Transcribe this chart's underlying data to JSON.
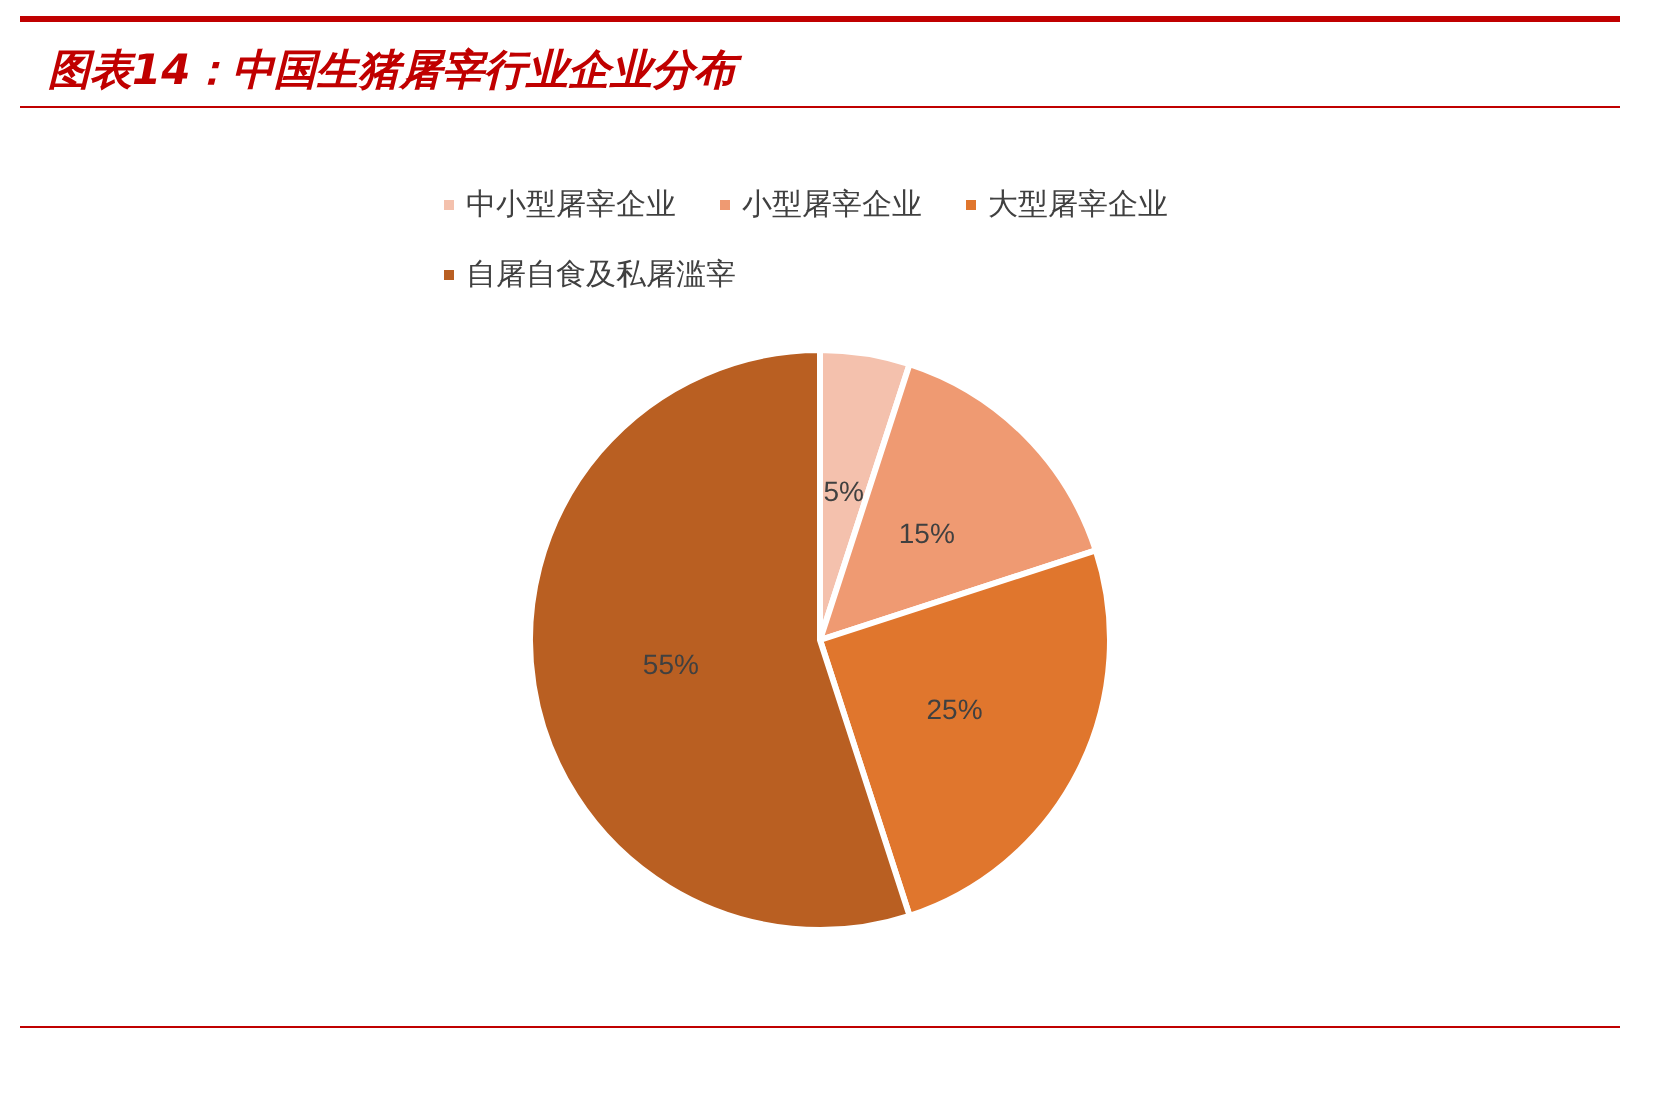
{
  "chart_data": {
    "type": "pie",
    "title": "图表14：中国生猪屠宰行业企业分布",
    "categories": [
      "中小型屠宰企业",
      "小型屠宰企业",
      "大型屠宰企业",
      "自屠自食及私屠滥宰"
    ],
    "values": [
      5,
      15,
      25,
      55
    ],
    "colors": [
      "#f4c1ad",
      "#ef9a72",
      "#e0762d",
      "#b95f22"
    ],
    "value_labels": [
      "5%",
      "15%",
      "25%",
      "55%"
    ],
    "legend": "top"
  }
}
